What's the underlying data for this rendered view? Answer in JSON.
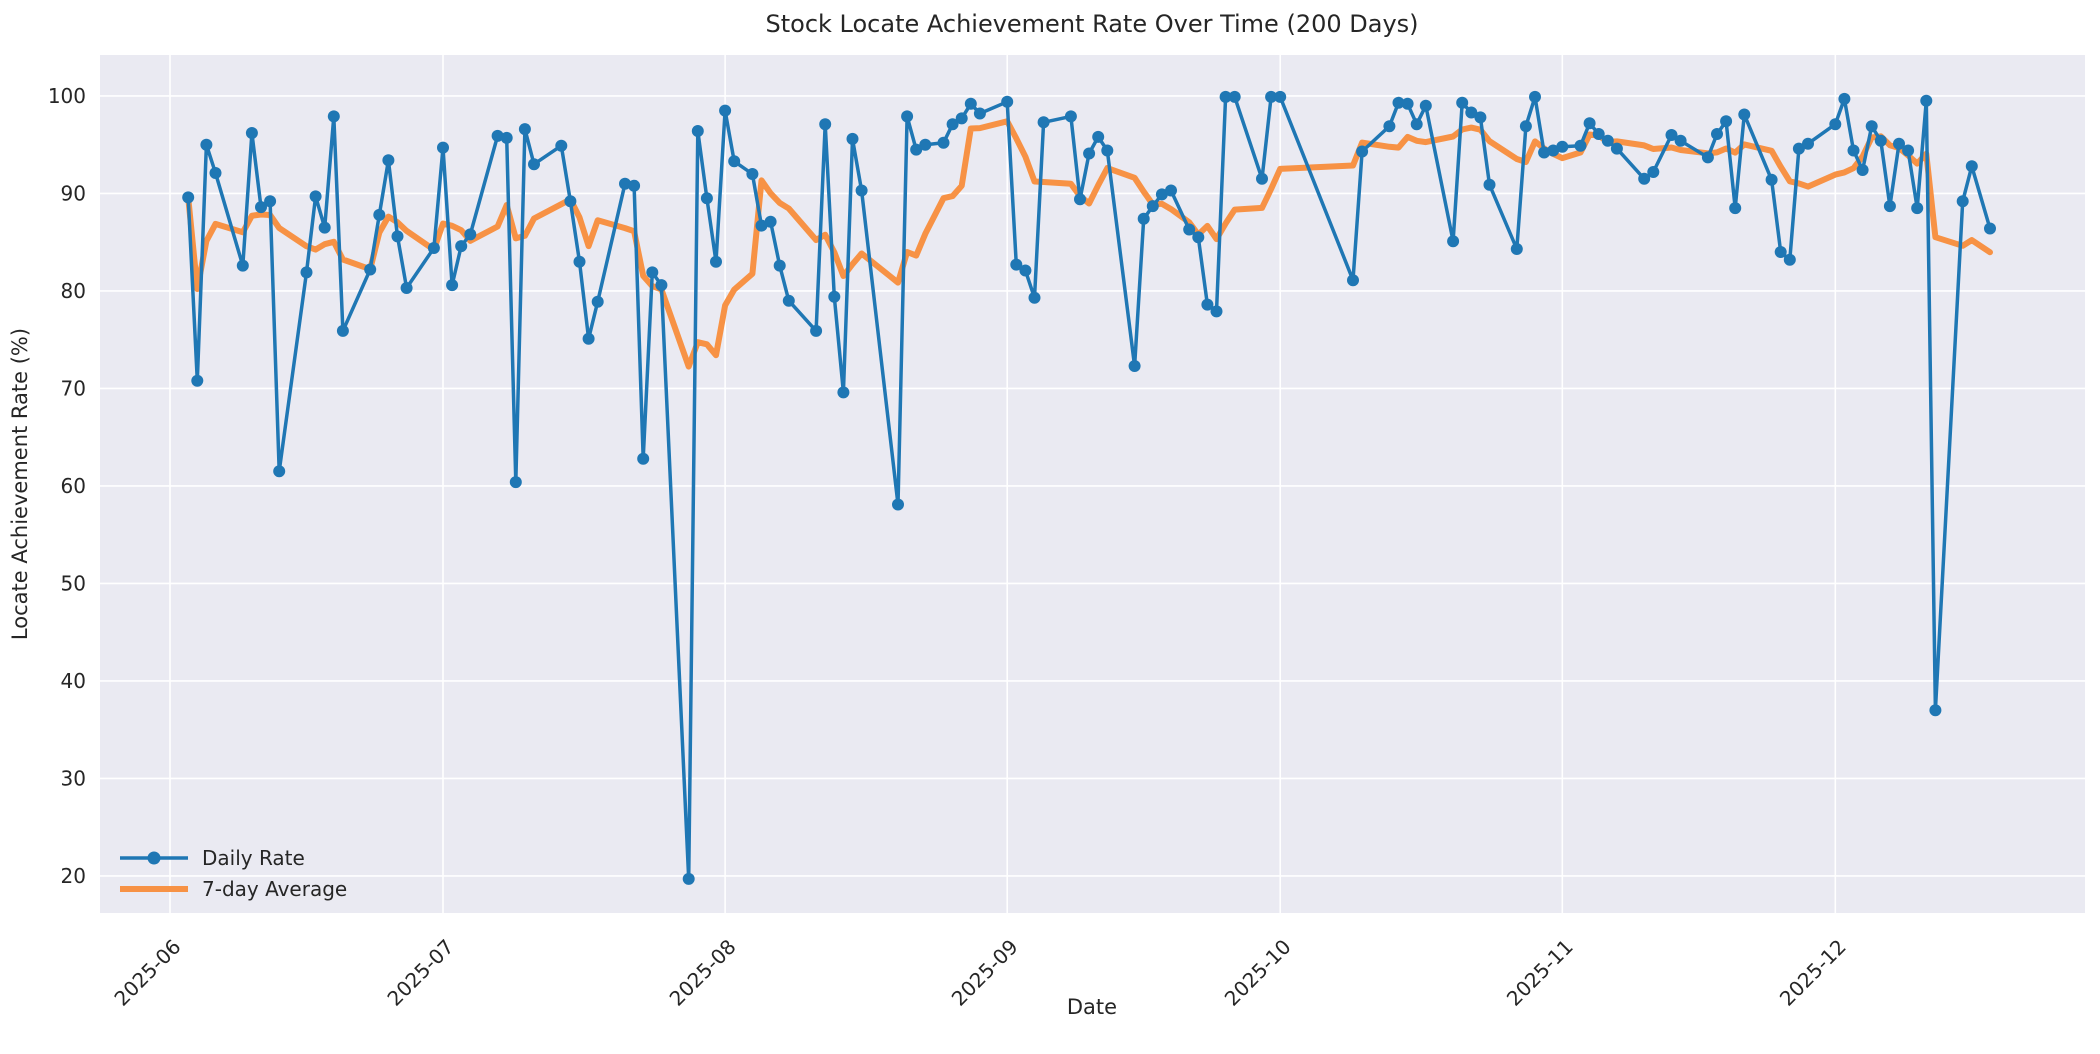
{
  "chart_data": {
    "type": "line",
    "title": "Stock Locate Achievement Rate Over Time (200 Days)",
    "xlabel": "Date",
    "ylabel": "Locate Achievement Rate (%)",
    "x_start_date": "2025-06-01",
    "x_tick_dates": [
      "2025-06-01",
      "2025-07-01",
      "2025-08-01",
      "2025-09-01",
      "2025-10-01",
      "2025-11-01",
      "2025-12-01"
    ],
    "x_tick_labels": [
      "2025-06",
      "2025-07",
      "2025-08",
      "2025-09",
      "2025-10",
      "2025-11",
      "2025-12"
    ],
    "y_ticks": [
      20,
      30,
      40,
      50,
      60,
      70,
      80,
      90,
      100
    ],
    "ylim_top_value": 104.2,
    "ylim_bottom_value": 16.2,
    "grid": true,
    "legend_position": "lower left",
    "series": [
      {
        "name": "Daily Rate",
        "color": "#1f77b4",
        "marker": "circle",
        "line_width": 3.5,
        "marker_radius": 6,
        "dates": [
          "2025-06-03",
          "2025-06-04",
          "2025-06-05",
          "2025-06-06",
          "2025-06-09",
          "2025-06-10",
          "2025-06-11",
          "2025-06-12",
          "2025-06-13",
          "2025-06-16",
          "2025-06-17",
          "2025-06-18",
          "2025-06-19",
          "2025-06-20",
          "2025-06-23",
          "2025-06-24",
          "2025-06-25",
          "2025-06-26",
          "2025-06-27",
          "2025-06-30",
          "2025-07-01",
          "2025-07-02",
          "2025-07-03",
          "2025-07-04",
          "2025-07-07",
          "2025-07-08",
          "2025-07-09",
          "2025-07-10",
          "2025-07-11",
          "2025-07-14",
          "2025-07-15",
          "2025-07-16",
          "2025-07-17",
          "2025-07-18",
          "2025-07-21",
          "2025-07-22",
          "2025-07-23",
          "2025-07-24",
          "2025-07-25",
          "2025-07-28",
          "2025-07-29",
          "2025-07-30",
          "2025-07-31",
          "2025-08-01",
          "2025-08-02",
          "2025-08-04",
          "2025-08-05",
          "2025-08-06",
          "2025-08-07",
          "2025-08-08",
          "2025-08-11",
          "2025-08-12",
          "2025-08-13",
          "2025-08-14",
          "2025-08-15",
          "2025-08-16",
          "2025-08-20",
          "2025-08-21",
          "2025-08-22",
          "2025-08-23",
          "2025-08-25",
          "2025-08-26",
          "2025-08-27",
          "2025-08-28",
          "2025-08-29",
          "2025-09-01",
          "2025-09-02",
          "2025-09-03",
          "2025-09-04",
          "2025-09-05",
          "2025-09-08",
          "2025-09-09",
          "2025-09-10",
          "2025-09-11",
          "2025-09-12",
          "2025-09-15",
          "2025-09-16",
          "2025-09-17",
          "2025-09-18",
          "2025-09-19",
          "2025-09-21",
          "2025-09-22",
          "2025-09-23",
          "2025-09-24",
          "2025-09-25",
          "2025-09-26",
          "2025-09-29",
          "2025-09-30",
          "2025-10-01",
          "2025-10-09",
          "2025-10-10",
          "2025-10-13",
          "2025-10-14",
          "2025-10-15",
          "2025-10-16",
          "2025-10-17",
          "2025-10-20",
          "2025-10-21",
          "2025-10-22",
          "2025-10-23",
          "2025-10-24",
          "2025-10-27",
          "2025-10-28",
          "2025-10-29",
          "2025-10-30",
          "2025-10-31",
          "2025-11-01",
          "2025-11-03",
          "2025-11-04",
          "2025-11-05",
          "2025-11-06",
          "2025-11-07",
          "2025-11-10",
          "2025-11-11",
          "2025-11-13",
          "2025-11-14",
          "2025-11-17",
          "2025-11-18",
          "2025-11-19",
          "2025-11-20",
          "2025-11-21",
          "2025-11-24",
          "2025-11-25",
          "2025-11-26",
          "2025-11-27",
          "2025-11-28",
          "2025-12-01",
          "2025-12-02",
          "2025-12-03",
          "2025-12-04",
          "2025-12-05",
          "2025-12-06",
          "2025-12-07",
          "2025-12-08",
          "2025-12-09",
          "2025-12-10",
          "2025-12-11",
          "2025-12-12",
          "2025-12-15",
          "2025-12-16",
          "2025-12-18"
        ],
        "values": [
          89.6,
          70.8,
          95.0,
          92.1,
          82.6,
          96.2,
          88.6,
          89.2,
          61.5,
          81.9,
          89.7,
          86.5,
          97.9,
          75.9,
          82.2,
          87.8,
          93.4,
          85.6,
          80.3,
          84.4,
          94.7,
          80.6,
          84.6,
          85.8,
          95.9,
          95.7,
          60.4,
          96.6,
          93.0,
          94.9,
          89.2,
          83.0,
          75.1,
          78.9,
          91.0,
          90.8,
          62.8,
          81.9,
          80.6,
          19.7,
          96.4,
          89.5,
          83.0,
          98.5,
          93.3,
          92.0,
          86.7,
          87.1,
          82.6,
          79.0,
          75.9,
          97.1,
          79.4,
          69.6,
          95.6,
          90.3,
          58.1,
          97.9,
          94.5,
          95.0,
          95.2,
          97.1,
          97.7,
          99.2,
          98.2,
          99.4,
          82.7,
          82.1,
          79.3,
          97.3,
          97.9,
          89.4,
          94.1,
          95.8,
          94.4,
          72.3,
          87.4,
          88.7,
          89.9,
          90.3,
          86.3,
          85.5,
          78.6,
          77.9,
          99.9,
          99.9,
          91.5,
          99.9,
          99.9,
          81.1,
          94.3,
          96.9,
          99.3,
          99.2,
          97.1,
          99.0,
          85.1,
          99.3,
          98.3,
          97.8,
          90.9,
          84.3,
          96.9,
          99.9,
          94.2,
          94.4,
          94.8,
          94.9,
          97.2,
          96.1,
          95.4,
          94.6,
          91.5,
          92.2,
          96.0,
          95.4,
          93.7,
          96.1,
          97.4,
          88.5,
          98.1,
          91.4,
          84.0,
          83.2,
          94.6,
          95.1,
          97.1,
          99.7,
          94.4,
          92.4,
          96.9,
          95.4,
          88.7,
          95.1,
          94.4,
          88.5,
          99.5,
          37.0,
          89.2,
          92.8,
          86.4
        ]
      },
      {
        "name": "7-day Average",
        "color": "#f79245",
        "derived_from": "Daily Rate",
        "rolling_window": 7,
        "min_periods": 1,
        "line_width": 6,
        "marker": "none"
      }
    ],
    "style": {
      "axes_background": "#eaeaf2",
      "grid_color": "#ffffff",
      "text_color": "#262626",
      "figure_background": "#ffffff"
    }
  },
  "legend": {
    "daily_label": "Daily Rate",
    "average_label": "7-day Average"
  }
}
